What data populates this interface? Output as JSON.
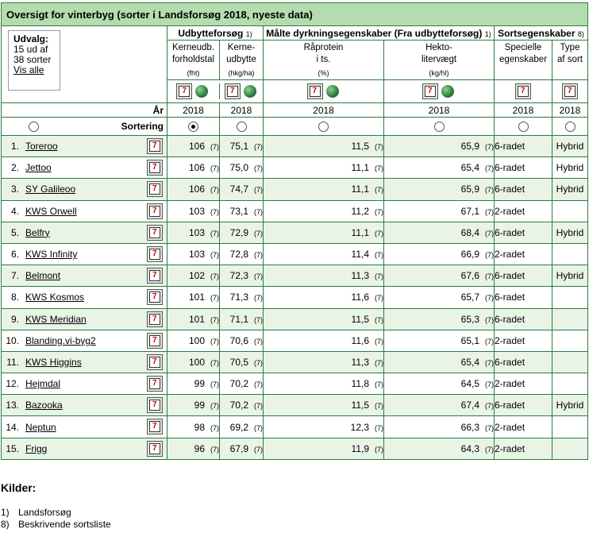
{
  "title": "Oversigt for vinterbyg (sorter i Landsforsøg 2018, nyeste data)",
  "udvalg": {
    "heading": "Udvalg:",
    "line1": "15 ud af",
    "line2": "38 sorter",
    "link": "Vis alle"
  },
  "groups": {
    "udbytte": "Udbytteforsøg",
    "udbytte_ref": "1)",
    "maalte": "Målte dyrkningsegenskaber (Fra udbytteforsøg)",
    "maalte_ref": "1)",
    "sorts": "Sortsegenskaber",
    "sorts_ref": "8)"
  },
  "columns": {
    "c1": {
      "l1": "Kerneudb.",
      "l2": "forholdstal",
      "unit": "(fht)"
    },
    "c2": {
      "l1": "Kerne-",
      "l2": "udbytte",
      "unit": "(hkg/ha)"
    },
    "c3": {
      "l1": "Råprotein",
      "l2": "i ts.",
      "unit": "(%)"
    },
    "c4": {
      "l1": "Hekto-",
      "l2": "litervægt",
      "unit": "(kg/hl)"
    },
    "c5": {
      "l1": "Specielle",
      "l2": "egenskaber"
    },
    "c6": {
      "l1": "Type",
      "l2": "af sort"
    }
  },
  "year_label": "År",
  "year": "2018",
  "sort_label": "Sortering",
  "rows": [
    {
      "nr": "1.",
      "name": "Toreroo",
      "fht": "106",
      "fht_n": "(7)",
      "udb": "75,1",
      "udb_n": "(7)",
      "prot": "11,5",
      "prot_n": "(7)",
      "hl": "65,9",
      "hl_n": "(7)",
      "spec": "6-radet",
      "type": "Hybrid"
    },
    {
      "nr": "2.",
      "name": "Jettoo",
      "fht": "106",
      "fht_n": "(7)",
      "udb": "75,0",
      "udb_n": "(7)",
      "prot": "11,1",
      "prot_n": "(7)",
      "hl": "65,4",
      "hl_n": "(7)",
      "spec": "6-radet",
      "type": "Hybrid"
    },
    {
      "nr": "3.",
      "name": "SY Galileoo",
      "fht": "106",
      "fht_n": "(7)",
      "udb": "74,7",
      "udb_n": "(7)",
      "prot": "11,1",
      "prot_n": "(7)",
      "hl": "65,9",
      "hl_n": "(7)",
      "spec": "6-radet",
      "type": "Hybrid"
    },
    {
      "nr": "4.",
      "name": "KWS Orwell",
      "fht": "103",
      "fht_n": "(7)",
      "udb": "73,1",
      "udb_n": "(7)",
      "prot": "11,2",
      "prot_n": "(7)",
      "hl": "67,1",
      "hl_n": "(7)",
      "spec": "2-radet",
      "type": ""
    },
    {
      "nr": "5.",
      "name": "Belfry",
      "fht": "103",
      "fht_n": "(7)",
      "udb": "72,9",
      "udb_n": "(7)",
      "prot": "11,1",
      "prot_n": "(7)",
      "hl": "68,4",
      "hl_n": "(7)",
      "spec": "6-radet",
      "type": "Hybrid"
    },
    {
      "nr": "6.",
      "name": "KWS Infinity",
      "fht": "103",
      "fht_n": "(7)",
      "udb": "72,8",
      "udb_n": "(7)",
      "prot": "11,4",
      "prot_n": "(7)",
      "hl": "66,9",
      "hl_n": "(7)",
      "spec": "2-radet",
      "type": ""
    },
    {
      "nr": "7.",
      "name": "Belmont",
      "fht": "102",
      "fht_n": "(7)",
      "udb": "72,3",
      "udb_n": "(7)",
      "prot": "11,3",
      "prot_n": "(7)",
      "hl": "67,6",
      "hl_n": "(7)",
      "spec": "6-radet",
      "type": "Hybrid"
    },
    {
      "nr": "8.",
      "name": "KWS Kosmos",
      "fht": "101",
      "fht_n": "(7)",
      "udb": "71,3",
      "udb_n": "(7)",
      "prot": "11,6",
      "prot_n": "(7)",
      "hl": "65,7",
      "hl_n": "(7)",
      "spec": "6-radet",
      "type": ""
    },
    {
      "nr": "9.",
      "name": "KWS Meridian",
      "fht": "101",
      "fht_n": "(7)",
      "udb": "71,1",
      "udb_n": "(7)",
      "prot": "11,5",
      "prot_n": "(7)",
      "hl": "65,3",
      "hl_n": "(7)",
      "spec": "6-radet",
      "type": ""
    },
    {
      "nr": "10.",
      "name": "Blanding.vi-byg2",
      "fht": "100",
      "fht_n": "(7)",
      "udb": "70,6",
      "udb_n": "(7)",
      "prot": "11,6",
      "prot_n": "(7)",
      "hl": "65,1",
      "hl_n": "(7)",
      "spec": "2-radet",
      "type": ""
    },
    {
      "nr": "11.",
      "name": "KWS Higgins",
      "fht": "100",
      "fht_n": "(7)",
      "udb": "70,5",
      "udb_n": "(7)",
      "prot": "11,3",
      "prot_n": "(7)",
      "hl": "65,4",
      "hl_n": "(7)",
      "spec": "6-radet",
      "type": ""
    },
    {
      "nr": "12.",
      "name": "Hejmdal",
      "fht": "99",
      "fht_n": "(7)",
      "udb": "70,2",
      "udb_n": "(7)",
      "prot": "11,8",
      "prot_n": "(7)",
      "hl": "64,5",
      "hl_n": "(7)",
      "spec": "2-radet",
      "type": ""
    },
    {
      "nr": "13.",
      "name": "Bazooka",
      "fht": "99",
      "fht_n": "(7)",
      "udb": "70,2",
      "udb_n": "(7)",
      "prot": "11,5",
      "prot_n": "(7)",
      "hl": "67,4",
      "hl_n": "(7)",
      "spec": "6-radet",
      "type": "Hybrid"
    },
    {
      "nr": "14.",
      "name": "Neptun",
      "fht": "98",
      "fht_n": "(7)",
      "udb": "69,2",
      "udb_n": "(7)",
      "prot": "12,3",
      "prot_n": "(7)",
      "hl": "66,3",
      "hl_n": "(7)",
      "spec": "2-radet",
      "type": ""
    },
    {
      "nr": "15.",
      "name": "Frigg",
      "fht": "96",
      "fht_n": "(7)",
      "udb": "67,9",
      "udb_n": "(7)",
      "prot": "11,9",
      "prot_n": "(7)",
      "hl": "64,3",
      "hl_n": "(7)",
      "spec": "2-radet",
      "type": ""
    }
  ],
  "sources": {
    "heading": "Kilder:",
    "items": [
      {
        "key": "1)",
        "label": "Landsforsøg"
      },
      {
        "key": "8)",
        "label": "Beskrivende sortsliste"
      }
    ]
  },
  "colors": {
    "border": "#2f7a3f",
    "title_bg": "#b5dcae",
    "alt_row": "#e9f4e6"
  }
}
